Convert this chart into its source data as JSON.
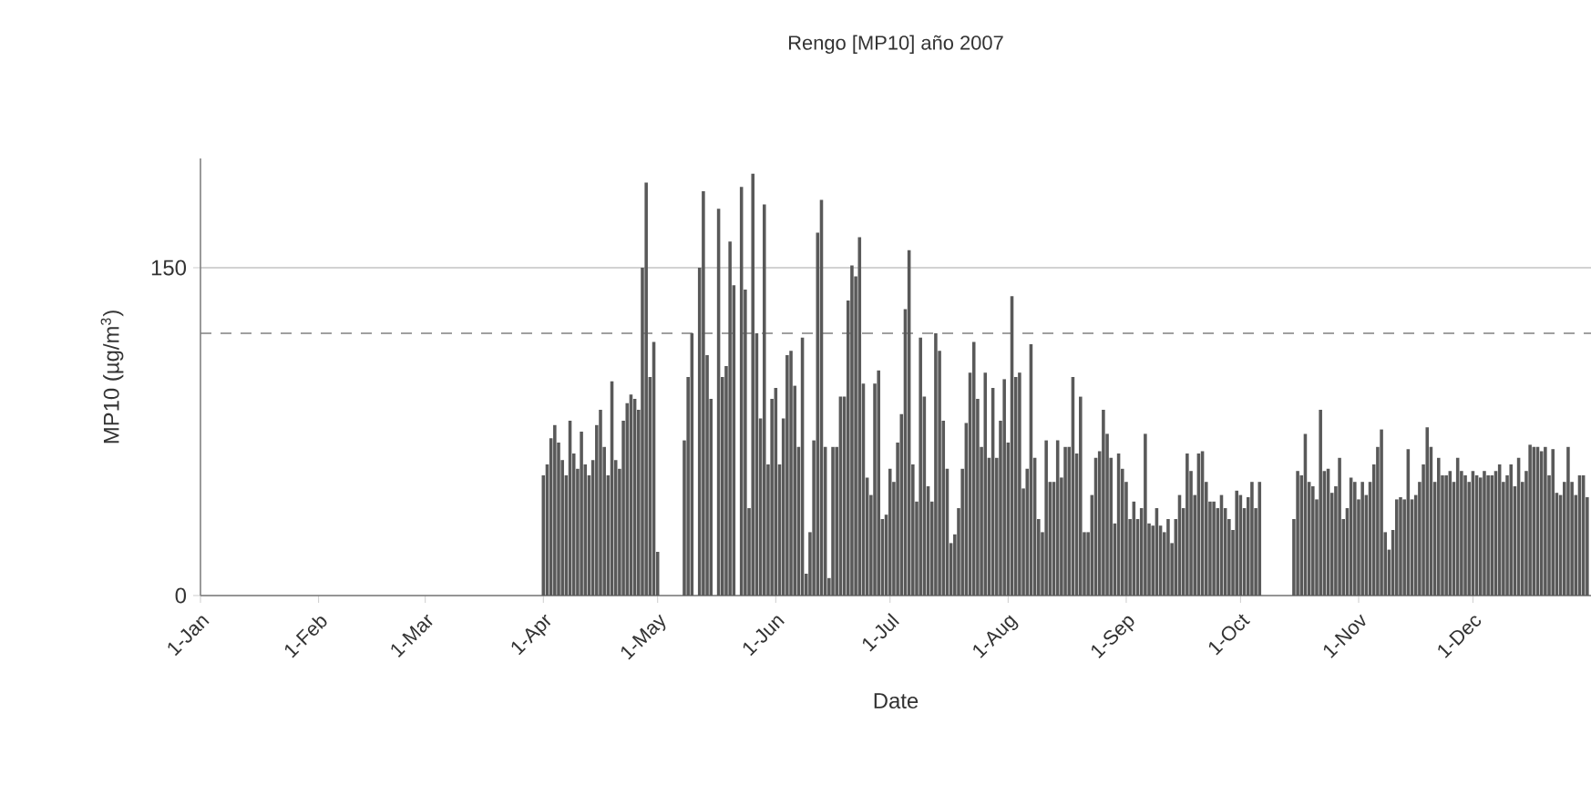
{
  "chart_data": {
    "type": "bar",
    "title": "Rengo [MP10] año 2007",
    "xlabel": "Date",
    "ylabel": "MP10 (µg/m$^{3}$)",
    "color": "#595959",
    "xlim": [
      "2007-01-01",
      "2008-01-01"
    ],
    "xticks": [
      {
        "value": "2007-01-01",
        "label": "1-Jan"
      },
      {
        "value": "2007-02-01",
        "label": "1-Feb"
      },
      {
        "value": "2007-03-01",
        "label": "1-Mar"
      },
      {
        "value": "2007-04-01",
        "label": "1-Apr"
      },
      {
        "value": "2007-05-01",
        "label": "1-May"
      },
      {
        "value": "2007-06-01",
        "label": "1-Jun"
      },
      {
        "value": "2007-07-01",
        "label": "1-Jul"
      },
      {
        "value": "2007-08-01",
        "label": "1-Aug"
      },
      {
        "value": "2007-09-01",
        "label": "1-Sep"
      },
      {
        "value": "2007-10-01",
        "label": "1-Oct"
      },
      {
        "value": "2007-11-01",
        "label": "1-Nov"
      },
      {
        "value": "2007-12-01",
        "label": "1-Dec"
      }
    ],
    "ylim": [
      0,
      200
    ],
    "yticks": [
      0,
      150
    ],
    "grid": "y",
    "ref_lines": [
      {
        "axis": "y",
        "value": 120,
        "line_style": "dashed",
        "color": "#808080"
      }
    ],
    "x": [
      "2007-04-01",
      "2007-04-02",
      "2007-04-03",
      "2007-04-04",
      "2007-04-05",
      "2007-04-06",
      "2007-04-07",
      "2007-04-08",
      "2007-04-09",
      "2007-04-10",
      "2007-04-11",
      "2007-04-12",
      "2007-04-13",
      "2007-04-14",
      "2007-04-15",
      "2007-04-16",
      "2007-04-17",
      "2007-04-18",
      "2007-04-19",
      "2007-04-20",
      "2007-04-21",
      "2007-04-22",
      "2007-04-23",
      "2007-04-24",
      "2007-04-25",
      "2007-04-26",
      "2007-04-27",
      "2007-04-28",
      "2007-04-29",
      "2007-04-30",
      "2007-05-01",
      "2007-05-02",
      "2007-05-03",
      "2007-05-04",
      "2007-05-05",
      "2007-05-06",
      "2007-05-07",
      "2007-05-08",
      "2007-05-09",
      "2007-05-10",
      "2007-05-11",
      "2007-05-12",
      "2007-05-13",
      "2007-05-14",
      "2007-05-15",
      "2007-05-16",
      "2007-05-17",
      "2007-05-18",
      "2007-05-19",
      "2007-05-20",
      "2007-05-21",
      "2007-05-22",
      "2007-05-23",
      "2007-05-24",
      "2007-05-25",
      "2007-05-26",
      "2007-05-27",
      "2007-05-28",
      "2007-05-29",
      "2007-05-30",
      "2007-05-31",
      "2007-06-01",
      "2007-06-02",
      "2007-06-03",
      "2007-06-04",
      "2007-06-05",
      "2007-06-06",
      "2007-06-07",
      "2007-06-08",
      "2007-06-09",
      "2007-06-10",
      "2007-06-11",
      "2007-06-12",
      "2007-06-13",
      "2007-06-14",
      "2007-06-15",
      "2007-06-16",
      "2007-06-17",
      "2007-06-18",
      "2007-06-19",
      "2007-06-20",
      "2007-06-21",
      "2007-06-22",
      "2007-06-23",
      "2007-06-24",
      "2007-06-25",
      "2007-06-26",
      "2007-06-27",
      "2007-06-28",
      "2007-06-29",
      "2007-06-30",
      "2007-07-01",
      "2007-07-02",
      "2007-07-03",
      "2007-07-04",
      "2007-07-05",
      "2007-07-06",
      "2007-07-07",
      "2007-07-08",
      "2007-07-09",
      "2007-07-10",
      "2007-07-11",
      "2007-07-12",
      "2007-07-13",
      "2007-07-14",
      "2007-07-15",
      "2007-07-16",
      "2007-07-17",
      "2007-07-18",
      "2007-07-19",
      "2007-07-20",
      "2007-07-21",
      "2007-07-22",
      "2007-07-23",
      "2007-07-24",
      "2007-07-25",
      "2007-07-26",
      "2007-07-27",
      "2007-07-28",
      "2007-07-29",
      "2007-07-30",
      "2007-07-31",
      "2007-08-01",
      "2007-08-02",
      "2007-08-03",
      "2007-08-04",
      "2007-08-05",
      "2007-08-06",
      "2007-08-07",
      "2007-08-08",
      "2007-08-09",
      "2007-08-10",
      "2007-08-11",
      "2007-08-12",
      "2007-08-13",
      "2007-08-14",
      "2007-08-15",
      "2007-08-16",
      "2007-08-17",
      "2007-08-18",
      "2007-08-19",
      "2007-08-20",
      "2007-08-21",
      "2007-08-22",
      "2007-08-23",
      "2007-08-24",
      "2007-08-25",
      "2007-08-26",
      "2007-08-27",
      "2007-08-28",
      "2007-08-29",
      "2007-08-30",
      "2007-08-31",
      "2007-09-01",
      "2007-09-02",
      "2007-09-03",
      "2007-09-04",
      "2007-09-05",
      "2007-09-06",
      "2007-09-07",
      "2007-09-08",
      "2007-09-09",
      "2007-09-10",
      "2007-09-11",
      "2007-09-12",
      "2007-09-13",
      "2007-09-14",
      "2007-09-15",
      "2007-09-16",
      "2007-09-17",
      "2007-09-18",
      "2007-09-19",
      "2007-09-20",
      "2007-09-21",
      "2007-09-22",
      "2007-09-23",
      "2007-09-24",
      "2007-09-25",
      "2007-09-26",
      "2007-09-27",
      "2007-09-28",
      "2007-09-29",
      "2007-09-30",
      "2007-10-01",
      "2007-10-02",
      "2007-10-03",
      "2007-10-04",
      "2007-10-05",
      "2007-10-06",
      "2007-10-07",
      "2007-10-08",
      "2007-10-09",
      "2007-10-10",
      "2007-10-11",
      "2007-10-12",
      "2007-10-13",
      "2007-10-14",
      "2007-10-15",
      "2007-10-16",
      "2007-10-17",
      "2007-10-18",
      "2007-10-19",
      "2007-10-20",
      "2007-10-21",
      "2007-10-22",
      "2007-10-23",
      "2007-10-24",
      "2007-10-25",
      "2007-10-26",
      "2007-10-27",
      "2007-10-28",
      "2007-10-29",
      "2007-10-30",
      "2007-10-31",
      "2007-11-01",
      "2007-11-02",
      "2007-11-03",
      "2007-11-04",
      "2007-11-05",
      "2007-11-06",
      "2007-11-07",
      "2007-11-08",
      "2007-11-09",
      "2007-11-10",
      "2007-11-11",
      "2007-11-12",
      "2007-11-13",
      "2007-11-14",
      "2007-11-15",
      "2007-11-16",
      "2007-11-17",
      "2007-11-18",
      "2007-11-19",
      "2007-11-20",
      "2007-11-21",
      "2007-11-22",
      "2007-11-23",
      "2007-11-24",
      "2007-11-25",
      "2007-11-26",
      "2007-11-27",
      "2007-11-28",
      "2007-11-29",
      "2007-11-30",
      "2007-12-01",
      "2007-12-02",
      "2007-12-03",
      "2007-12-04",
      "2007-12-05",
      "2007-12-06",
      "2007-12-07",
      "2007-12-08",
      "2007-12-09",
      "2007-12-10",
      "2007-12-11",
      "2007-12-12",
      "2007-12-13",
      "2007-12-14",
      "2007-12-15",
      "2007-12-16",
      "2007-12-17",
      "2007-12-18",
      "2007-12-19",
      "2007-12-20",
      "2007-12-21",
      "2007-12-22",
      "2007-12-23",
      "2007-12-24",
      "2007-12-25",
      "2007-12-26",
      "2007-12-27",
      "2007-12-28",
      "2007-12-29",
      "2007-12-30",
      "2007-12-31"
    ],
    "values": [
      55,
      60,
      72,
      78,
      70,
      62,
      55,
      80,
      65,
      58,
      75,
      60,
      55,
      62,
      78,
      85,
      68,
      55,
      98,
      62,
      58,
      80,
      88,
      92,
      90,
      85,
      150,
      189,
      100,
      116,
      20,
      null,
      null,
      null,
      null,
      null,
      null,
      71,
      100,
      120,
      null,
      150,
      185,
      110,
      90,
      null,
      177,
      100,
      105,
      162,
      142,
      null,
      187,
      140,
      40,
      193,
      120,
      81,
      179,
      60,
      90,
      95,
      60,
      81,
      110,
      112,
      96,
      68,
      118,
      10,
      29,
      71,
      166,
      181,
      68,
      8,
      68,
      68,
      91,
      91,
      135,
      151,
      146,
      164,
      97,
      54,
      46,
      97,
      103,
      35,
      37,
      58,
      52,
      70,
      83,
      131,
      158,
      60,
      43,
      118,
      91,
      50,
      43,
      120,
      112,
      80,
      58,
      24,
      28,
      40,
      58,
      79,
      102,
      116,
      90,
      68,
      102,
      63,
      95,
      63,
      80,
      99,
      70,
      137,
      100,
      102,
      49,
      58,
      115,
      63,
      35,
      29,
      71,
      52,
      52,
      71,
      54,
      68,
      68,
      100,
      65,
      91,
      29,
      29,
      46,
      63,
      66,
      85,
      74,
      63,
      33,
      65,
      58,
      52,
      35,
      43,
      35,
      40,
      74,
      33,
      32,
      40,
      32,
      29,
      35,
      24,
      35,
      46,
      40,
      65,
      57,
      46,
      65,
      66,
      52,
      43,
      43,
      40,
      46,
      40,
      35,
      30,
      48,
      46,
      40,
      45,
      52,
      40,
      52,
      null,
      null,
      null,
      null,
      null,
      null,
      null,
      null,
      35,
      57,
      55,
      74,
      52,
      50,
      44,
      85,
      57,
      58,
      47,
      50,
      63,
      35,
      40,
      54,
      52,
      44,
      52,
      46,
      52,
      60,
      68,
      76,
      29,
      21,
      30,
      44,
      45,
      44,
      67,
      44,
      46,
      52,
      60,
      77,
      68,
      52,
      63,
      55,
      55,
      57,
      52,
      63,
      57,
      55,
      52,
      57,
      55,
      54,
      57,
      55,
      55,
      57,
      60,
      52,
      55,
      60,
      50,
      63,
      52,
      57,
      69,
      68,
      68,
      66,
      68,
      55,
      67,
      47,
      46,
      52,
      68,
      52,
      46,
      55,
      55,
      45
    ]
  }
}
